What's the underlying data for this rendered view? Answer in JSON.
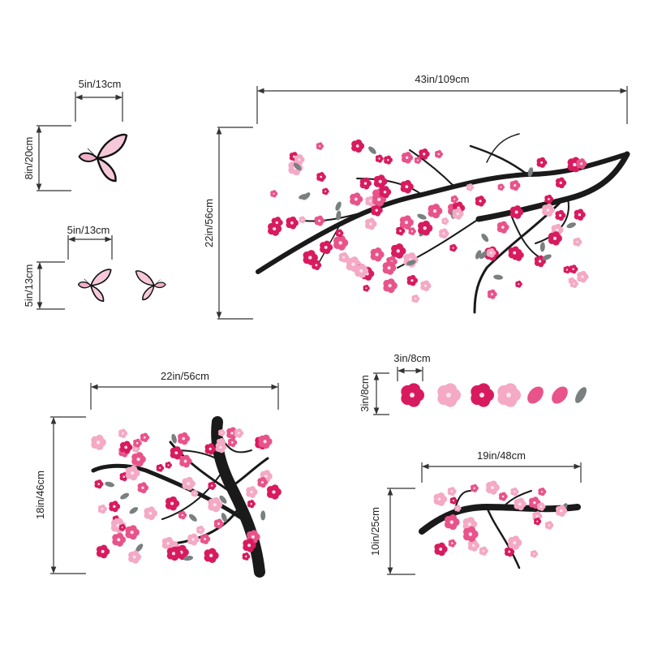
{
  "dimensions": {
    "butterfly_large_width": "5in/13cm",
    "butterfly_large_height": "8in/20cm",
    "butterfly_pair_width": "5in/13cm",
    "butterfly_pair_height": "5in/13cm",
    "large_branch_width": "43in/109cm",
    "large_branch_height": "22in/56cm",
    "tree_width": "22in/56cm",
    "tree_height": "18in/46cm",
    "petal_width": "3in/8cm",
    "petal_height": "3in/8cm",
    "small_branch_width": "19in/48cm",
    "small_branch_height": "10in/25cm"
  },
  "colors": {
    "branch": "#1a1a1a",
    "blossom_dark": "#d81b5e",
    "blossom_mid": "#e8538a",
    "blossom_light": "#f4a9c4",
    "leaf": "#7a7f80",
    "dimension_line": "#333333"
  }
}
